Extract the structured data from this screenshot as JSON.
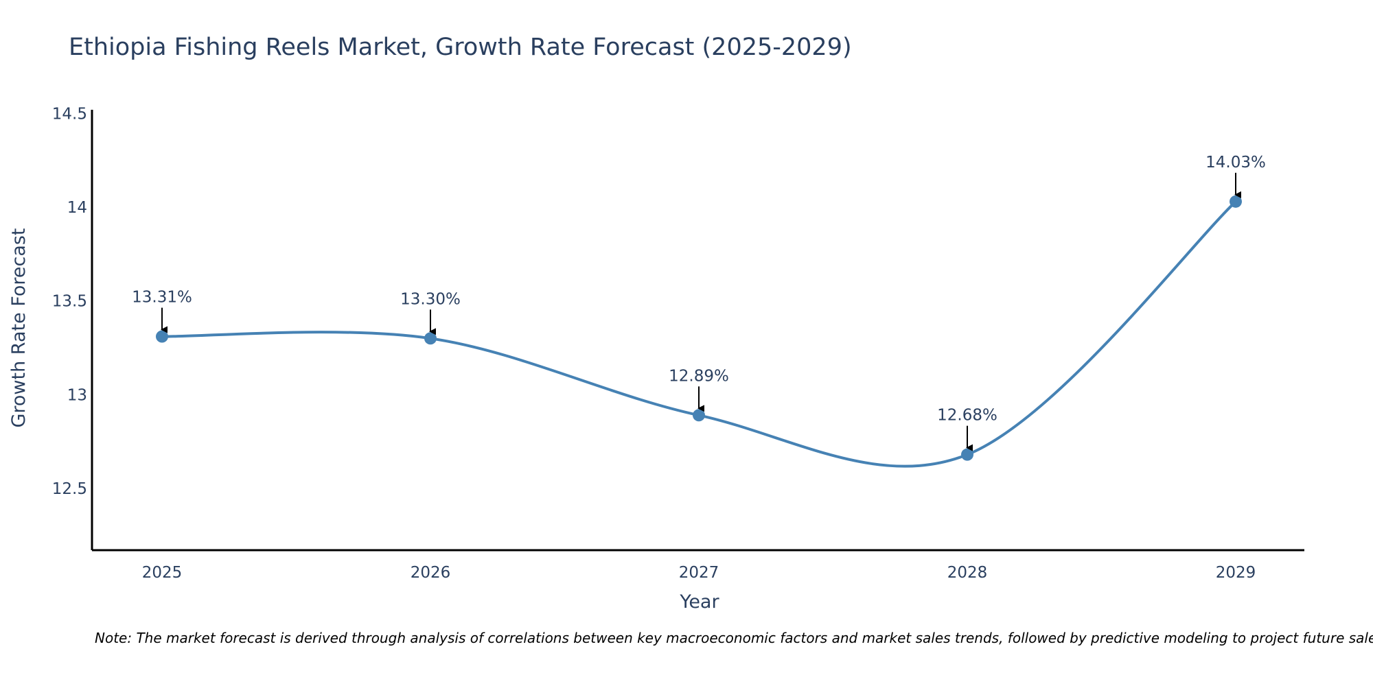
{
  "chart_data": {
    "type": "line",
    "title": "Ethiopia Fishing Reels Market, Growth Rate Forecast (2025-2029)",
    "xlabel": "Year",
    "ylabel": "Growth Rate Forecast",
    "categories": [
      "2025",
      "2026",
      "2027",
      "2028",
      "2029"
    ],
    "series": [
      {
        "name": "Growth Rate Forecast",
        "values": [
          13.31,
          13.3,
          12.89,
          12.68,
          14.03
        ],
        "labels": [
          "13.31%",
          "13.30%",
          "12.89%",
          "12.68%",
          "14.03%"
        ],
        "color": "#4682B4",
        "smoothing": "spline"
      }
    ],
    "ylim": [
      12.17,
      14.52
    ],
    "yticks": [
      12.5,
      13,
      13.5,
      14,
      14.5
    ],
    "ytick_labels": [
      "12.5",
      "13",
      "13.5",
      "14",
      "14.5"
    ],
    "grid": false,
    "legend": "none",
    "colors": {
      "title": "#2A3F5F",
      "axis_line": "#000000",
      "tick_text": "#2A3F5F",
      "annotation_arrow": "#000000"
    }
  },
  "note": "Note: The market forecast is derived through analysis of correlations between key macroeconomic factors and market sales trends, followed by predictive modeling to project future sales."
}
